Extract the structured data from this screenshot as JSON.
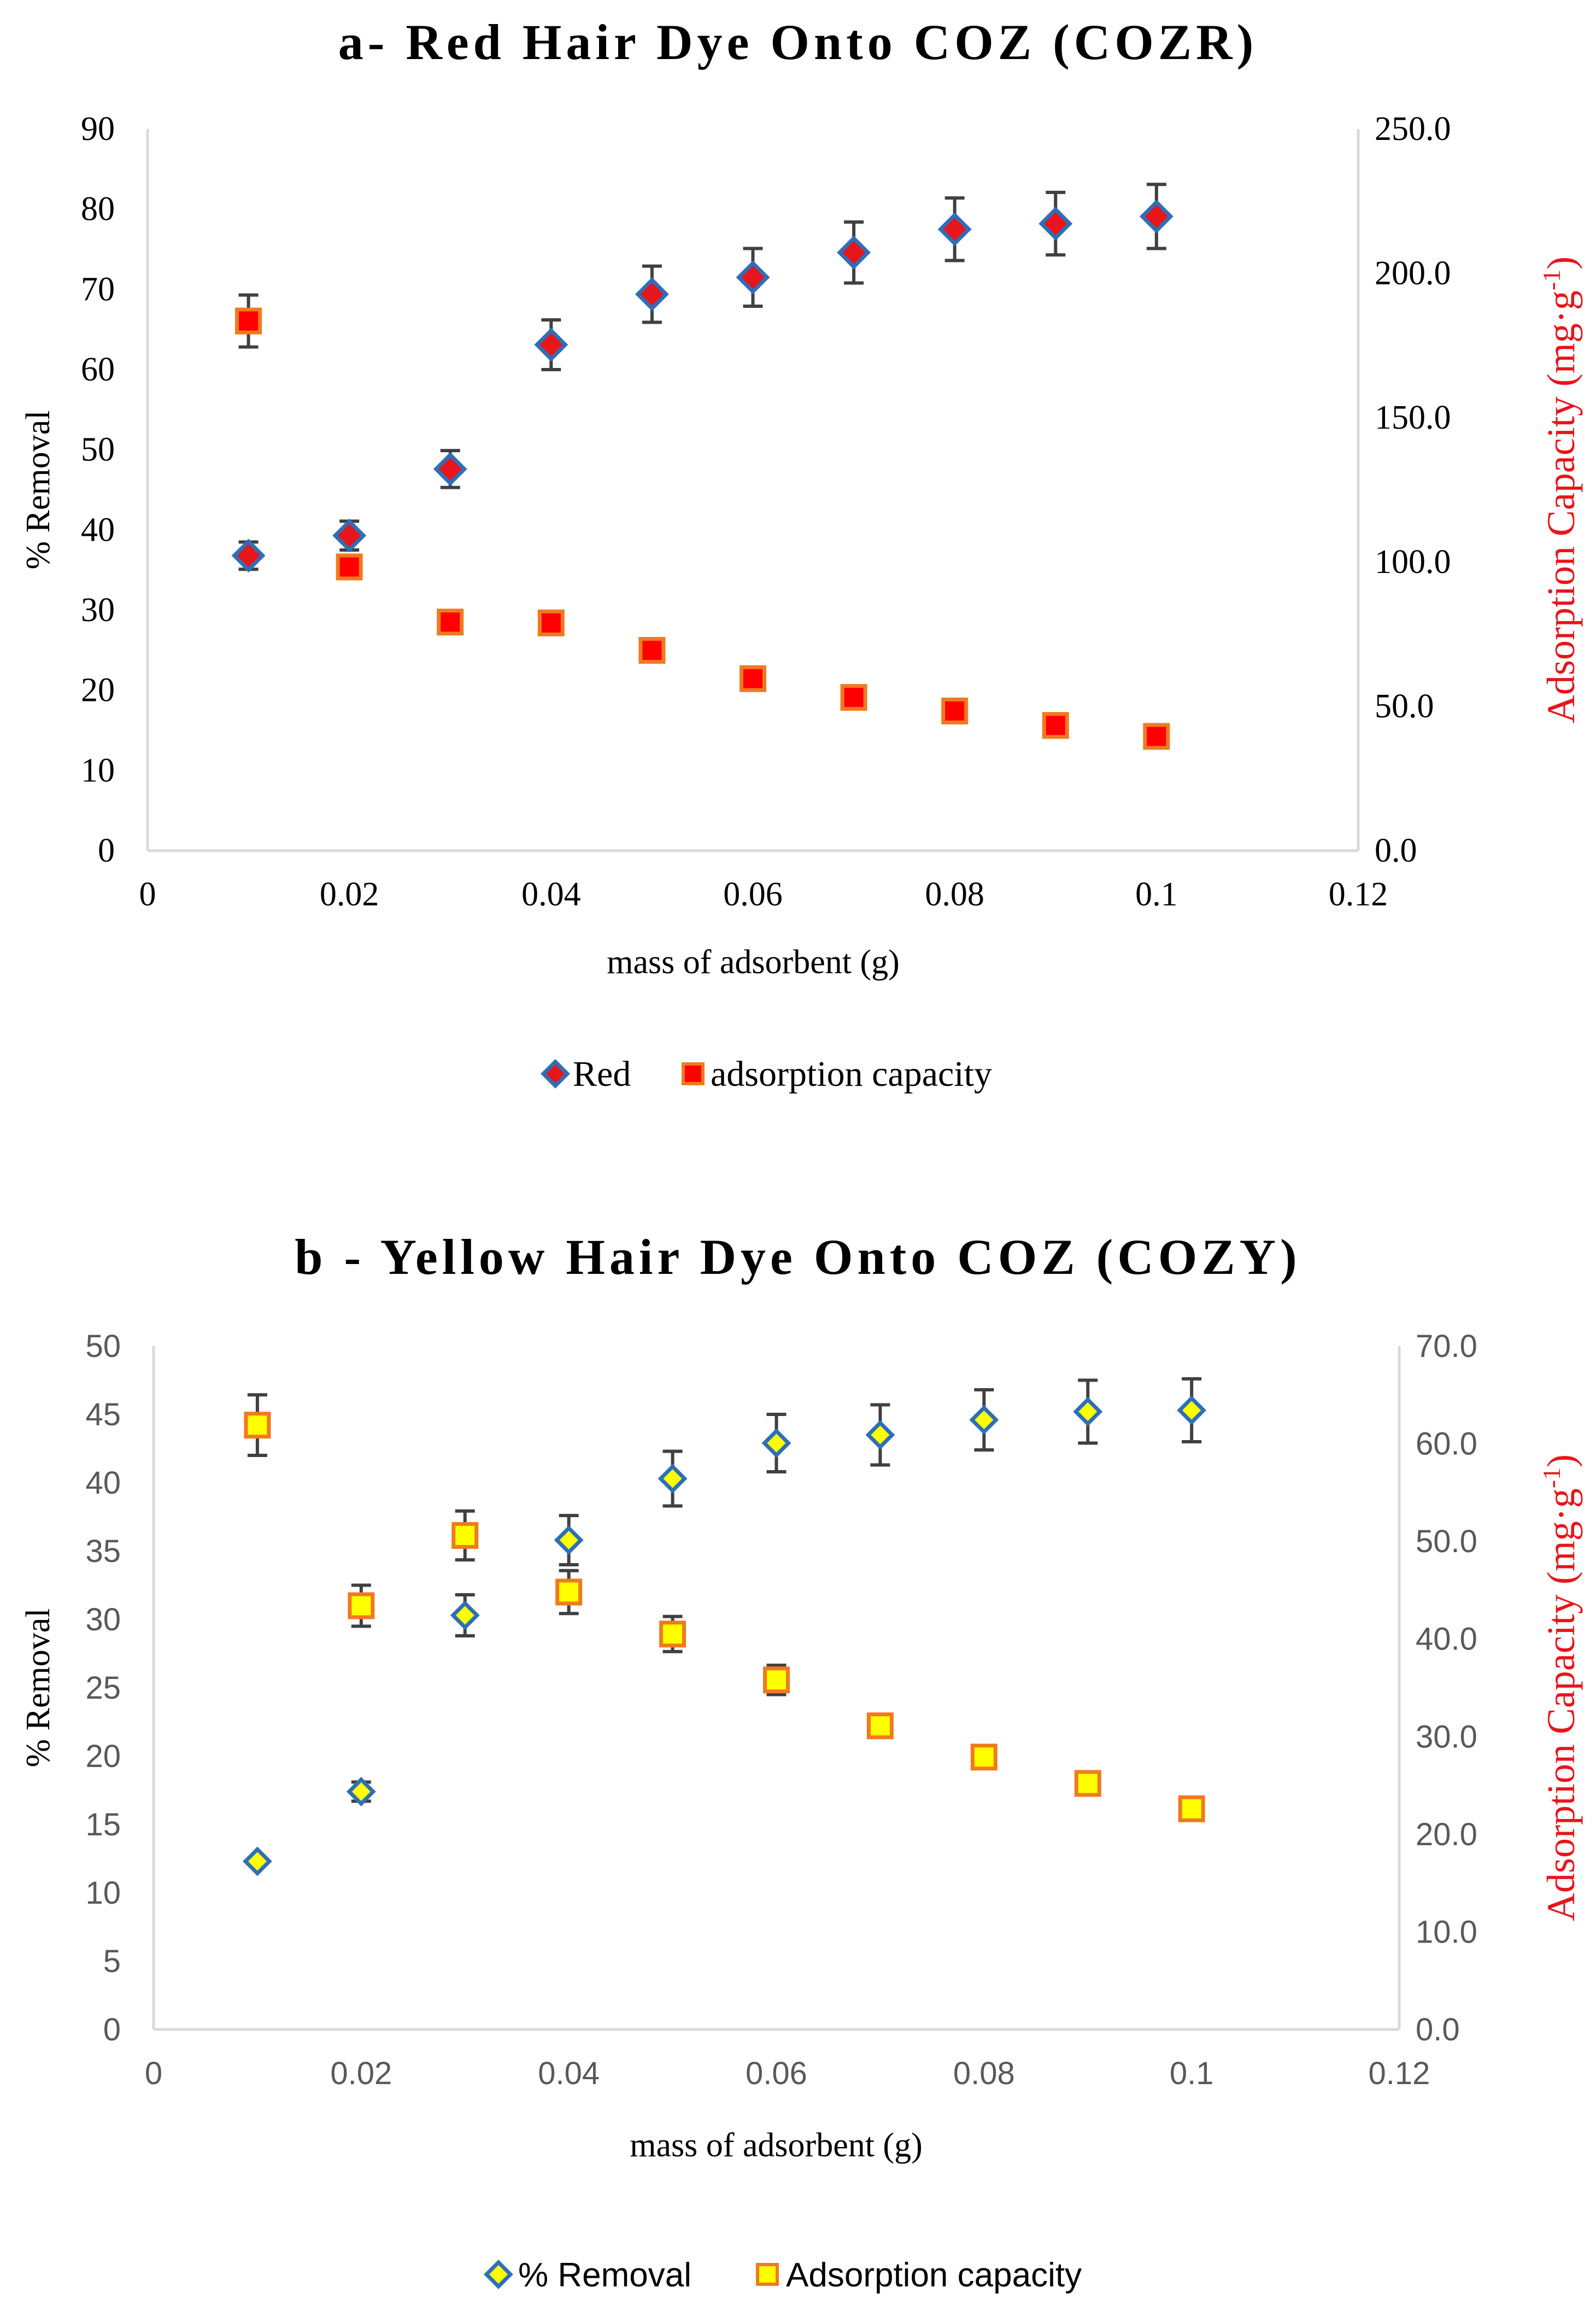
{
  "chart_data": [
    {
      "type": "scatter",
      "title": "a- Red Hair Dye Onto COZ (COZR)",
      "xlabel": "mass of adsorbent (g)",
      "ylabel": "% Removal",
      "y2label": "Adsorption Capacity (mg·g",
      "y2label_sup": "-1",
      "y2label_end": ")",
      "xlim": [
        0,
        0.12
      ],
      "ylim": [
        0,
        90
      ],
      "y2lim": [
        0,
        250
      ],
      "x_ticks": [
        "0",
        "0.02",
        "0.04",
        "0.06",
        "0.08",
        "0.1",
        "0.12"
      ],
      "y_ticks": [
        "0",
        "10",
        "20",
        "30",
        "40",
        "50",
        "60",
        "70",
        "80",
        "90"
      ],
      "y2_ticks": [
        "0.0",
        "50.0",
        "100.0",
        "150.0",
        "200.0",
        "250.0"
      ],
      "legend_position": "bottom",
      "series": [
        {
          "name": "Red",
          "axis": "left",
          "marker": "diamond",
          "fill": "#e8151b",
          "stroke": "#2e6fb7",
          "x": [
            0.01,
            0.02,
            0.03,
            0.04,
            0.05,
            0.06,
            0.07,
            0.08,
            0.09,
            0.1
          ],
          "values": [
            36.8,
            39.3,
            47.6,
            63.1,
            69.4,
            71.5,
            74.6,
            77.5,
            78.2,
            79.1
          ],
          "error": [
            1.7,
            1.8,
            2.3,
            3.1,
            3.5,
            3.6,
            3.8,
            3.9,
            3.9,
            4.0
          ]
        },
        {
          "name": "adsorption capacity",
          "axis": "right",
          "marker": "square",
          "fill": "#ff0000",
          "stroke": "#f07a20",
          "x": [
            0.01,
            0.02,
            0.03,
            0.04,
            0.05,
            0.06,
            0.07,
            0.08,
            0.09,
            0.1
          ],
          "values": [
            183.5,
            98.3,
            79.2,
            78.9,
            69.4,
            59.6,
            53.1,
            48.4,
            43.4,
            39.6
          ],
          "error": [
            9.0,
            0,
            0,
            0,
            0,
            0,
            0,
            0,
            0,
            0
          ]
        }
      ]
    },
    {
      "type": "scatter",
      "title": "b - Yellow Hair Dye Onto COZ (COZY)",
      "xlabel": "mass of adsorbent (g)",
      "ylabel": "% Removal",
      "y2label": "Adsorption Capacity (mg·g",
      "y2label_sup": "-1",
      "y2label_end": ")",
      "xlim": [
        0,
        0.12
      ],
      "ylim": [
        0,
        50
      ],
      "y2lim": [
        0,
        70
      ],
      "x_ticks": [
        "0",
        "0.02",
        "0.04",
        "0.06",
        "0.08",
        "0.1",
        "0.12"
      ],
      "y_ticks": [
        "0",
        "5",
        "10",
        "15",
        "20",
        "25",
        "30",
        "35",
        "40",
        "45",
        "50"
      ],
      "y2_ticks": [
        "0.0",
        "10.0",
        "20.0",
        "30.0",
        "40.0",
        "50.0",
        "60.0",
        "70.0"
      ],
      "legend_position": "bottom",
      "series": [
        {
          "name": "% Removal",
          "axis": "left",
          "marker": "diamond",
          "fill": "#ffff00",
          "stroke": "#2e6fb7",
          "x": [
            0.01,
            0.02,
            0.03,
            0.04,
            0.05,
            0.06,
            0.07,
            0.08,
            0.09,
            0.1
          ],
          "values": [
            12.3,
            17.4,
            30.3,
            35.8,
            40.3,
            42.9,
            43.5,
            44.6,
            45.2,
            45.3
          ],
          "error": [
            0,
            0.7,
            1.5,
            1.8,
            2.0,
            2.1,
            2.2,
            2.2,
            2.3,
            2.3
          ]
        },
        {
          "name": "Adsorption capacity",
          "axis": "right",
          "marker": "square",
          "fill": "#ffff00",
          "stroke": "#f07a20",
          "x": [
            0.01,
            0.02,
            0.03,
            0.04,
            0.05,
            0.06,
            0.07,
            0.08,
            0.09,
            0.1
          ],
          "values": [
            61.9,
            43.4,
            50.6,
            44.8,
            40.5,
            35.8,
            31.1,
            27.9,
            25.2,
            22.6
          ],
          "error": [
            3.1,
            2.1,
            2.5,
            2.2,
            1.8,
            1.5,
            0,
            0,
            0,
            0
          ]
        }
      ]
    }
  ]
}
